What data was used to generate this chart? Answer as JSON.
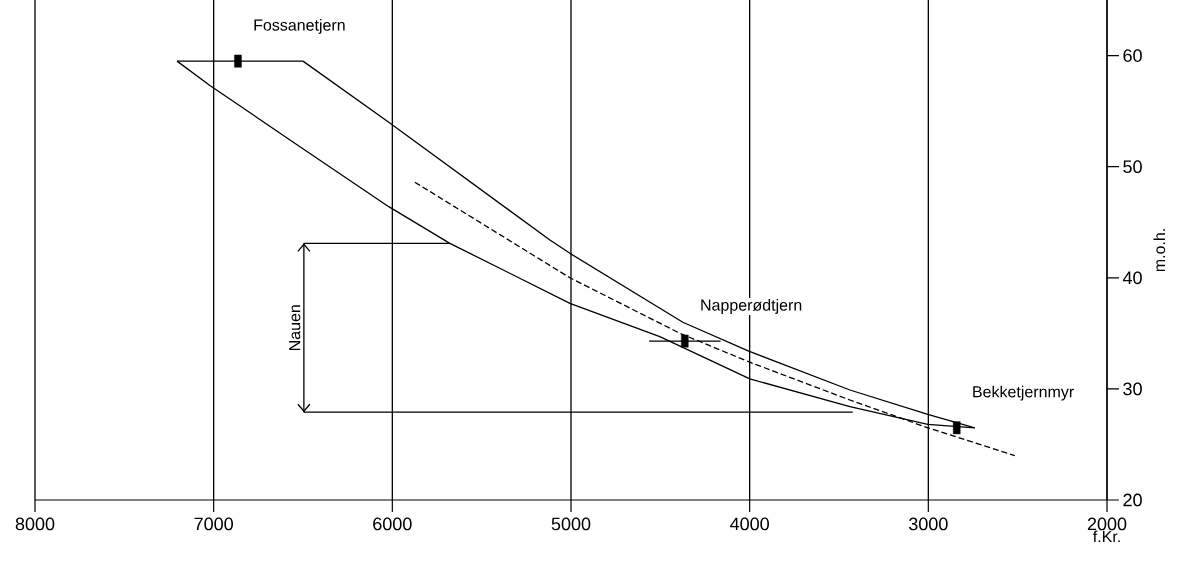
{
  "chart_data": {
    "type": "line",
    "xlabel": "f.Kr.",
    "ylabel": "m.o.h.",
    "xlim": [
      8000,
      2000
    ],
    "xticks": [
      8000,
      7000,
      6000,
      5000,
      4000,
      3000,
      2000
    ],
    "ylim": [
      20,
      65
    ],
    "yticks": [
      20,
      30,
      40,
      50,
      60
    ],
    "grid": "x",
    "series": [
      {
        "color": "#000000",
        "line_style": "solid",
        "x": [
          6500,
          6020,
          5118,
          5006,
          4374,
          4005,
          3439,
          3003,
          2740
        ],
        "values": [
          59.5,
          54.0,
          43.4,
          42.2,
          36.0,
          33.4,
          29.9,
          27.7,
          26.5
        ]
      },
      {
        "type": "line",
        "color": "#000000",
        "line_style": "solid",
        "x": [
          7205,
          7021,
          6517,
          6020,
          5678,
          5006,
          4503,
          3999,
          3439,
          3003,
          2740
        ],
        "values": [
          59.5,
          57.3,
          51.8,
          46.4,
          43.1,
          37.7,
          34.7,
          30.9,
          28.4,
          26.8,
          26.5
        ]
      },
      {
        "type": "line",
        "color": "#000000",
        "line_style": "solid",
        "x": [
          7205,
          6500
        ],
        "values": [
          59.5,
          59.5
        ]
      },
      {
        "type": "line",
        "color": "#000000",
        "line_style": "dashed",
        "x": [
          5874,
          5006,
          4390,
          3999,
          3439,
          3003,
          2516
        ],
        "values": [
          48.6,
          40.0,
          35.0,
          32.4,
          29.0,
          26.5,
          24.0
        ]
      },
      {
        "type": "line",
        "color": "#000000",
        "line_style": "solid",
        "x": [
          6495,
          5678
        ],
        "values": [
          43.1,
          43.1
        ]
      },
      {
        "type": "line",
        "color": "#000000",
        "line_style": "solid",
        "x": [
          6495,
          3423
        ],
        "values": [
          27.9,
          27.9
        ]
      },
      {
        "type": "line",
        "name": "Nauen",
        "color": "#000000",
        "line_style": "solid",
        "x": [
          6495,
          6495
        ],
        "values": [
          43.1,
          27.9
        ]
      },
      {
        "type": "scatter",
        "color": "#000000",
        "marker": "square",
        "x": [
          6864,
          4363,
          2841
        ],
        "values": [
          59.5,
          34.3,
          26.5
        ],
        "xerrors": [
          null,
          200,
          null
        ]
      }
    ],
    "annotations": [
      {
        "text": "Fossanetjern",
        "x": 6864,
        "y": 59.5
      },
      {
        "text": "Napperødtjern",
        "x": 4363,
        "y": 34.3
      },
      {
        "text": "Bekketjernmyr",
        "x": 2841,
        "y": 26.5
      }
    ]
  }
}
